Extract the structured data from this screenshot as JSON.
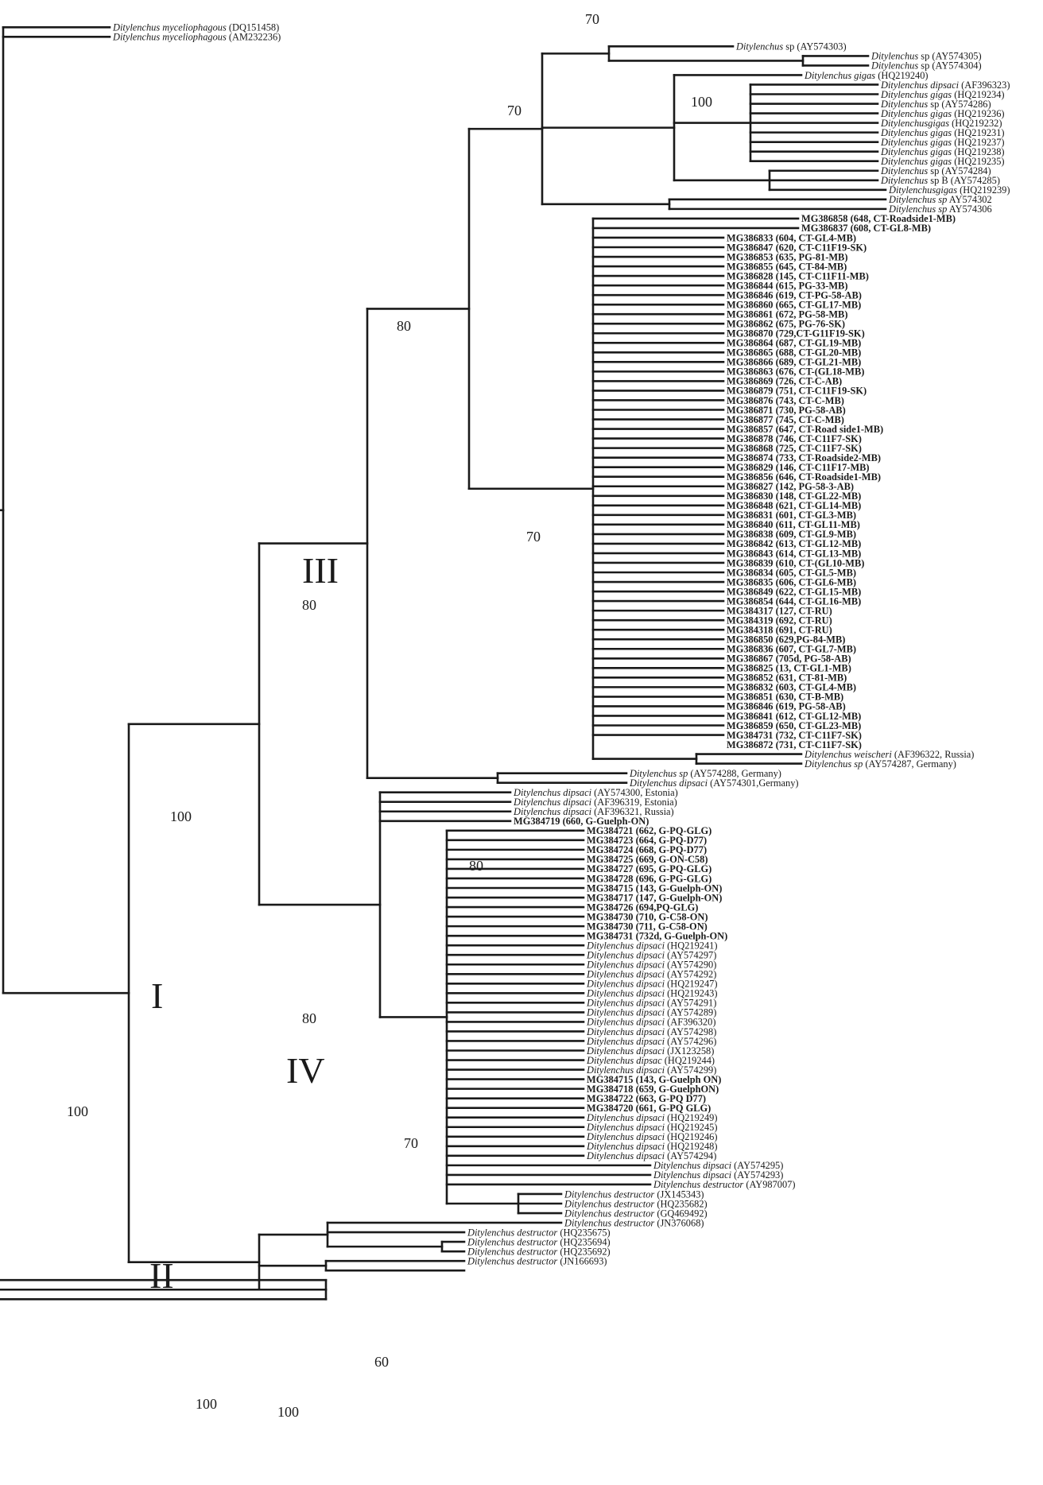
{
  "figure": {
    "clade_labels": [
      "I",
      "II",
      "III",
      "IV"
    ],
    "bootstrap": {
      "root": "100",
      "cladeI": "100",
      "cladeIII_IV": "80",
      "cladeIII": "80",
      "cladeIII_inner": "70",
      "sp_group_top": "70",
      "gigas_group": "100",
      "mg_cluster": "70",
      "weischeri_pair": "80",
      "cladeIV": "80",
      "dipsaci_cluster": "70",
      "cladeII": "100",
      "destructor_inner": "100",
      "destructor_sub": "60"
    },
    "leaves": [
      {
        "sp": "Ditylenchus myceliophagous",
        "acc": " (DQ151458)"
      },
      {
        "sp": "Ditylenchus myceliophagous",
        "acc": " (AM232236)"
      },
      {
        "sp": "Ditylenchus",
        "acc": " sp (AY574303)"
      },
      {
        "sp": "Ditylenchus",
        "acc": " sp (AY574305)"
      },
      {
        "sp": "Ditylenchus",
        "acc": " sp (AY574304)"
      },
      {
        "sp": "Ditylenchus gigas",
        "acc": " (HQ219240)"
      },
      {
        "sp": "Ditylenchus dipsaci",
        "acc": " (AF396323)"
      },
      {
        "sp": "Ditylenchus gigas",
        "acc": " (HQ219234)"
      },
      {
        "sp": "Ditylenchus",
        "acc": " sp (AY574286)"
      },
      {
        "sp": "Ditylenchus gigas",
        "acc": " (HQ219236)"
      },
      {
        "sp": "Ditylenchusgigas",
        "acc": " (HQ219232)"
      },
      {
        "sp": "Ditylenchus gigas",
        "acc": " (HQ219231)"
      },
      {
        "sp": "Ditylenchus gigas",
        "acc": " (HQ219237)"
      },
      {
        "sp": "Ditylenchus gigas",
        "acc": " (HQ219238)"
      },
      {
        "sp": "Ditylenchus gigas",
        "acc": " (HQ219235)"
      },
      {
        "sp": "Ditylenchus",
        "acc": " sp (AY574284)"
      },
      {
        "sp": "Ditylenchus",
        "acc": " sp B (AY574285)"
      },
      {
        "sp": "Ditylenchusgigas",
        "acc": " (HQ219239)"
      },
      {
        "sp": "Ditylenchus sp",
        "acc": " AY574302"
      },
      {
        "sp": "Ditylenchus sp",
        "acc": " AY574306"
      },
      {
        "bold": "MG386858 (648, CT-Roadside1-MB)"
      },
      {
        "bold": "MG386837 (608, CT-GL8-MB)"
      },
      {
        "bold": "MG386833 (604, CT-GL4-MB)"
      },
      {
        "bold": "MG386847 (620, CT-C11F19-SK)"
      },
      {
        "bold": "MG386853 (635, PG-81-MB)"
      },
      {
        "bold": "MG386855 (645, CT-84-MB)"
      },
      {
        "bold": "MG386828 (145, CT-C11F11-MB)"
      },
      {
        "bold": "MG386844 (615, PG-33-MB)"
      },
      {
        "bold": "MG386846 (619, CT-PG-58-AB)"
      },
      {
        "bold": "MG386860 (665, CT-GL17-MB)"
      },
      {
        "bold": "MG386861 (672, PG-58-MB)"
      },
      {
        "bold": "MG386862 (675, PG-76-SK)"
      },
      {
        "bold": "MG386870 (729,CT-G11F19-SK)"
      },
      {
        "bold": "MG386864 (687, CT-GL19-MB)"
      },
      {
        "bold": "MG386865 (688, CT-GL20-MB)"
      },
      {
        "bold": "MG386866 (689, CT-GL21-MB)"
      },
      {
        "bold": "MG386863 (676, CT-(GL18-MB)"
      },
      {
        "bold": "MG386869 (726, CT-C-AB)"
      },
      {
        "bold": "MG386879 (751, CT-C11F19-SK)"
      },
      {
        "bold": "MG386876 (743, CT-C-MB)"
      },
      {
        "bold": "MG386871 (730, PG-58-AB)"
      },
      {
        "bold": "MG386877 (745, CT-C-MB)"
      },
      {
        "bold": "MG386857 (647, CT-Road side1-MB)"
      },
      {
        "bold": "MG386878 (746, CT-C11F7-SK)"
      },
      {
        "bold": "MG386868 (725, CT-C11F7-SK)"
      },
      {
        "bold": "MG386874 (733, CT-Roadside2-MB)"
      },
      {
        "bold": "MG386829 (146, CT-C11F17-MB)"
      },
      {
        "bold": "MG386856 (646, CT-Roadside1-MB)"
      },
      {
        "bold": "MG386827 (142, PG-58-3-AB)"
      },
      {
        "bold": "MG386830 (148, CT-GL22-MB)"
      },
      {
        "bold": "MG386848 (621, CT-GL14-MB)"
      },
      {
        "bold": "MG386831 (601, CT-GL3-MB)"
      },
      {
        "bold": "MG386840 (611, CT-GL11-MB)"
      },
      {
        "bold": "MG386838 (609, CT-GL9-MB)"
      },
      {
        "bold": "MG386842 (613, CT-GL12-MB)"
      },
      {
        "bold": "MG386843 (614, CT-GL13-MB)"
      },
      {
        "bold": "MG386839 (610, CT-(GL10-MB)"
      },
      {
        "bold": "MG386834 (605, CT-GL5-MB)"
      },
      {
        "bold": "MG386835 (606, CT-GL6-MB)"
      },
      {
        "bold": "MG386849 (622, CT-GL15-MB)"
      },
      {
        "bold": "MG386854 (644, CT-GL16-MB)"
      },
      {
        "bold": "MG384317 (127, CT-RU)"
      },
      {
        "bold": "MG384319 (692, CT-RU)"
      },
      {
        "bold": "MG384318 (691, CT-RU)"
      },
      {
        "bold": "MG386850 (629,PG-84-MB)"
      },
      {
        "bold": "MG386836 (607, CT-GL7-MB)"
      },
      {
        "bold": "MG386867 (705d, PG-58-AB)"
      },
      {
        "bold": "MG386825 (13, CT-GL1-MB)"
      },
      {
        "bold": "MG386852 (631, CT-81-MB)"
      },
      {
        "bold": "MG386832 (603, CT-GL4-MB)"
      },
      {
        "bold": "MG386851 (630, CT-B-MB)"
      },
      {
        "bold": "MG386846 (619, PG-58-AB)"
      },
      {
        "bold": "MG386841 (612, CT-GL12-MB)"
      },
      {
        "bold": "MG386859 (650, CT-GL23-MB)"
      },
      {
        "bold": "MG384731 (732, CT-C11F7-SK)"
      },
      {
        "bold": "MG386872 (731, CT-C11F7-SK)"
      },
      {
        "sp": "Ditylenchus weischeri",
        "acc": " (AF396322, Russia)"
      },
      {
        "sp": "Ditylenchus sp",
        "acc": " (AY574287, Germany)"
      },
      {
        "sp": "Ditylenchus sp",
        "acc": " (AY574288, Germany)"
      },
      {
        "sp": "Ditylenchus dipsaci",
        "acc": " (AY574301,Germany)"
      },
      {
        "sp": "Ditylenchus dipsaci",
        "acc": " (AY574300, Estonia)"
      },
      {
        "sp": "Ditylenchus dipsaci",
        "acc": " (AF396319, Estonia)"
      },
      {
        "sp": "Ditylenchus dipsaci",
        "acc": " (AF396321, Russia)"
      },
      {
        "bold": "MG384719 (660, G-Guelph-ON)"
      },
      {
        "bold": "MG384721 (662, G-PQ-GLG)"
      },
      {
        "bold": "MG384723 (664, G-PQ-D77)"
      },
      {
        "bold": "MG384724 (668, G-PQ-D77)"
      },
      {
        "bold": "MG384725 (669, G-ON-C58)"
      },
      {
        "bold": "MG384727 (695, G-PQ-GLG)"
      },
      {
        "bold": "MG384728 (696, G-PG-GLG)"
      },
      {
        "bold": "MG384715 (143, G-Guelph-ON)"
      },
      {
        "bold": "MG384717 (147, G-Guelph-ON)"
      },
      {
        "bold": "MG384726 (694,PQ-GLG)"
      },
      {
        "bold": "MG384730 (710, G-C58-ON)"
      },
      {
        "bold": "MG384730 (711, G-C58-ON)"
      },
      {
        "bold": "MG384731 (732d, G-Guelph-ON)"
      },
      {
        "sp": "Ditylenchus dipsaci",
        "acc": " (HQ219241)"
      },
      {
        "sp": "Ditylenchus dipsaci",
        "acc": " (AY574297)"
      },
      {
        "sp": "Ditylenchus dipsaci",
        "acc": " (AY574290)"
      },
      {
        "sp": "Ditylenchus dipsaci",
        "acc": " (AY574292)"
      },
      {
        "sp": "Ditylenchus dipsaci",
        "acc": " (HQ219247)"
      },
      {
        "sp": "Ditylenchus dipsaci",
        "acc": " (HQ219243)"
      },
      {
        "sp": "Ditylenchus dipsaci",
        "acc": " (AY574291)"
      },
      {
        "sp": "Ditylenchus dipsaci",
        "acc": " (AY574289)"
      },
      {
        "sp": "Ditylenchus dipsaci",
        "acc": " (AF396320)"
      },
      {
        "sp": "Ditylenchus dipsaci",
        "acc": " (AY574298)"
      },
      {
        "sp": "Ditylenchus dipsaci",
        "acc": " (AY574296)"
      },
      {
        "sp": "Ditylenchus dipsaci",
        "acc": " (JX123258)"
      },
      {
        "sp": "Ditylenchus dipsac",
        "acc": " (HQ219244)"
      },
      {
        "sp": "Ditylenchus dipsaci",
        "acc": " (AY574299)"
      },
      {
        "bold": "MG384715 (143, G-Guelph ON)"
      },
      {
        "bold": "MG384718 (659, G-GuelphON)"
      },
      {
        "bold": "MG384722 (663, G-PQ D77)"
      },
      {
        "bold": "MG384720 (661, G-PQ GLG)"
      },
      {
        "sp": "Ditylenchus dipsaci",
        "acc": " (HQ219249)"
      },
      {
        "sp": "Ditylenchus dipsaci",
        "acc": " (HQ219245)"
      },
      {
        "sp": "Ditylenchus dipsaci",
        "acc": " (HQ219246)"
      },
      {
        "sp": "Ditylenchus dipsaci",
        "acc": " (HQ219248)"
      },
      {
        "sp": "Ditylenchus dipsaci",
        "acc": " (AY574294)"
      },
      {
        "sp": "Ditylenchus dipsaci",
        "acc": " (AY574295)"
      },
      {
        "sp": "Ditylenchus dipsaci",
        "acc": " (AY574293)"
      },
      {
        "sp": "Ditylenchus destructor",
        "acc": " (AY987007)"
      },
      {
        "sp": "Ditylenchus destructor",
        "acc": " (JX145343)"
      },
      {
        "sp": "Ditylenchus destructor",
        "acc": " (HQ235682)"
      },
      {
        "sp": "Ditylenchus destructor",
        "acc": " (GQ469492)"
      },
      {
        "sp": "Ditylenchus destructor",
        "acc": " (JN376068)"
      },
      {
        "sp": "Ditylenchus destructor",
        "acc": " (HQ235675)"
      },
      {
        "sp": "Ditylenchus destructor",
        "acc": " (HQ235694)"
      },
      {
        "sp": "Ditylenchus destructor",
        "acc": " (HQ235692)"
      },
      {
        "sp": "Ditylenchus destructor",
        "acc": " (JN166693)"
      }
    ]
  }
}
